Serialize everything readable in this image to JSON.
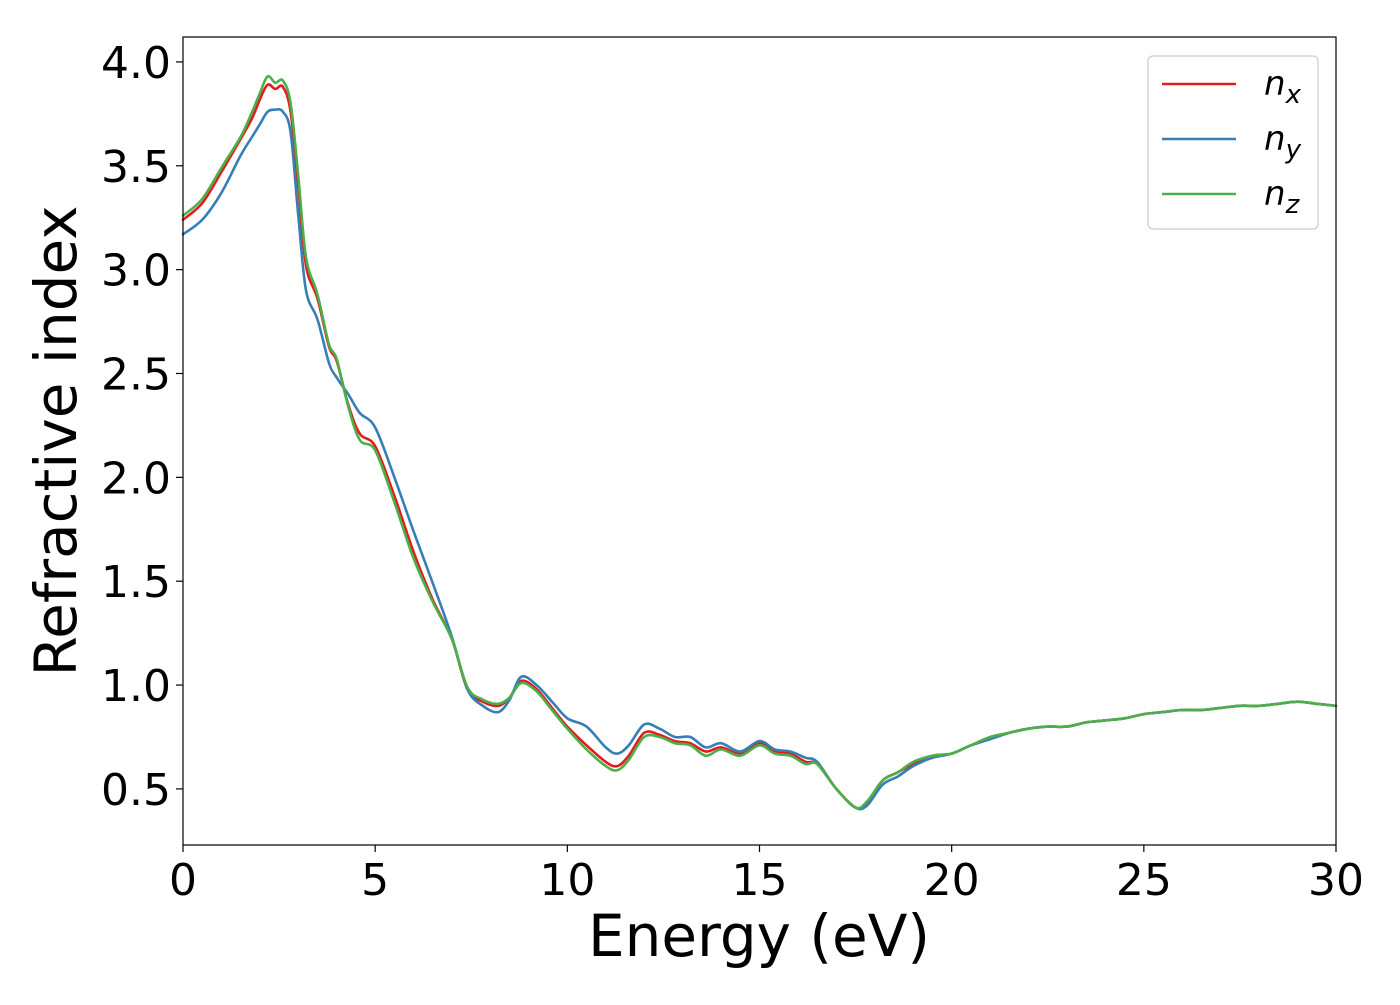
{
  "chart_data": {
    "type": "line",
    "xlabel": "Energy (eV)",
    "ylabel": "Refractive index",
    "xlim": [
      0,
      30
    ],
    "ylim": [
      0.23,
      4.12
    ],
    "xticks": [
      0,
      5,
      10,
      15,
      20,
      25,
      30
    ],
    "xtick_labels": [
      "0",
      "5",
      "10",
      "15",
      "20",
      "25",
      "30"
    ],
    "yticks": [
      0.5,
      1.0,
      1.5,
      2.0,
      2.5,
      3.0,
      3.5,
      4.0
    ],
    "ytick_labels": [
      "0.5",
      "1.0",
      "1.5",
      "2.0",
      "2.5",
      "3.0",
      "3.5",
      "4.0"
    ],
    "grid": false,
    "legend_position": "top-right",
    "series": [
      {
        "name": "n_x",
        "name_base": "n",
        "name_sub": "x",
        "color": "#e41a1c",
        "x": [
          0,
          0.5,
          1.0,
          1.5,
          1.8,
          2.0,
          2.2,
          2.4,
          2.6,
          2.8,
          3.0,
          3.2,
          3.5,
          3.8,
          4.0,
          4.3,
          4.6,
          5.0,
          5.5,
          6.0,
          6.5,
          7.0,
          7.4,
          7.8,
          8.2,
          8.5,
          8.8,
          9.2,
          9.6,
          10.0,
          10.5,
          11.0,
          11.3,
          11.6,
          12.0,
          12.4,
          12.8,
          13.2,
          13.6,
          14.0,
          14.5,
          15.0,
          15.4,
          15.8,
          16.2,
          16.5,
          17.0,
          17.5,
          17.8,
          18.2,
          18.6,
          19.0,
          19.5,
          20.0,
          20.5,
          21.0,
          21.5,
          22.0,
          22.5,
          23.0,
          23.5,
          24.0,
          24.5,
          25.0,
          25.5,
          26.0,
          26.5,
          27.0,
          27.5,
          28.0,
          28.5,
          29.0,
          29.5,
          30.0
        ],
        "y": [
          3.24,
          3.32,
          3.47,
          3.63,
          3.73,
          3.82,
          3.89,
          3.87,
          3.88,
          3.76,
          3.4,
          3.02,
          2.86,
          2.63,
          2.56,
          2.35,
          2.21,
          2.15,
          1.91,
          1.64,
          1.41,
          1.22,
          0.98,
          0.92,
          0.9,
          0.94,
          1.02,
          0.98,
          0.89,
          0.8,
          0.71,
          0.63,
          0.61,
          0.66,
          0.77,
          0.76,
          0.73,
          0.72,
          0.68,
          0.7,
          0.67,
          0.72,
          0.68,
          0.67,
          0.63,
          0.62,
          0.5,
          0.41,
          0.43,
          0.54,
          0.58,
          0.62,
          0.66,
          0.67,
          0.71,
          0.74,
          0.77,
          0.79,
          0.8,
          0.8,
          0.82,
          0.83,
          0.84,
          0.86,
          0.87,
          0.88,
          0.88,
          0.89,
          0.9,
          0.9,
          0.91,
          0.92,
          0.91,
          0.9
        ]
      },
      {
        "name": "n_y",
        "name_base": "n",
        "name_sub": "y",
        "color": "#377eb8",
        "x": [
          0,
          0.5,
          1.0,
          1.5,
          1.8,
          2.0,
          2.2,
          2.4,
          2.6,
          2.8,
          3.0,
          3.2,
          3.5,
          3.8,
          4.0,
          4.3,
          4.6,
          5.0,
          5.5,
          6.0,
          6.5,
          7.0,
          7.4,
          7.8,
          8.2,
          8.5,
          8.8,
          9.2,
          9.6,
          10.0,
          10.5,
          11.0,
          11.3,
          11.6,
          12.0,
          12.4,
          12.8,
          13.2,
          13.6,
          14.0,
          14.5,
          15.0,
          15.4,
          15.8,
          16.2,
          16.5,
          17.0,
          17.5,
          17.8,
          18.2,
          18.6,
          19.0,
          19.5,
          20.0,
          20.5,
          21.0,
          21.5,
          22.0,
          22.5,
          23.0,
          23.5,
          24.0,
          24.5,
          25.0,
          25.5,
          26.0,
          26.5,
          27.0,
          27.5,
          28.0,
          28.5,
          29.0,
          29.5,
          30.0
        ],
        "y": [
          3.17,
          3.24,
          3.37,
          3.55,
          3.64,
          3.7,
          3.76,
          3.77,
          3.76,
          3.66,
          3.26,
          2.9,
          2.76,
          2.55,
          2.48,
          2.4,
          2.31,
          2.24,
          2.0,
          1.74,
          1.49,
          1.23,
          0.98,
          0.9,
          0.87,
          0.93,
          1.04,
          1.0,
          0.92,
          0.84,
          0.8,
          0.7,
          0.67,
          0.71,
          0.81,
          0.79,
          0.75,
          0.75,
          0.7,
          0.72,
          0.68,
          0.73,
          0.69,
          0.68,
          0.65,
          0.63,
          0.5,
          0.41,
          0.42,
          0.52,
          0.56,
          0.61,
          0.65,
          0.67,
          0.71,
          0.74,
          0.77,
          0.79,
          0.8,
          0.8,
          0.82,
          0.83,
          0.84,
          0.86,
          0.87,
          0.88,
          0.88,
          0.89,
          0.9,
          0.9,
          0.91,
          0.92,
          0.91,
          0.9
        ]
      },
      {
        "name": "n_z",
        "name_base": "n",
        "name_sub": "z",
        "color": "#4daf4a",
        "x": [
          0,
          0.5,
          1.0,
          1.5,
          1.8,
          2.0,
          2.2,
          2.4,
          2.6,
          2.8,
          3.0,
          3.2,
          3.5,
          3.8,
          4.0,
          4.3,
          4.6,
          5.0,
          5.5,
          6.0,
          6.5,
          7.0,
          7.4,
          7.8,
          8.2,
          8.5,
          8.8,
          9.2,
          9.6,
          10.0,
          10.5,
          11.0,
          11.3,
          11.6,
          12.0,
          12.4,
          12.8,
          13.2,
          13.6,
          14.0,
          14.5,
          15.0,
          15.4,
          15.8,
          16.2,
          16.5,
          17.0,
          17.5,
          17.8,
          18.2,
          18.6,
          19.0,
          19.5,
          20.0,
          20.5,
          21.0,
          21.5,
          22.0,
          22.5,
          23.0,
          23.5,
          24.0,
          24.5,
          25.0,
          25.5,
          26.0,
          26.5,
          27.0,
          27.5,
          28.0,
          28.5,
          29.0,
          29.5,
          30.0
        ],
        "y": [
          3.26,
          3.34,
          3.49,
          3.64,
          3.76,
          3.85,
          3.93,
          3.9,
          3.91,
          3.8,
          3.45,
          3.06,
          2.88,
          2.64,
          2.57,
          2.34,
          2.18,
          2.13,
          1.88,
          1.61,
          1.4,
          1.22,
          0.99,
          0.93,
          0.91,
          0.94,
          1.01,
          0.97,
          0.88,
          0.79,
          0.69,
          0.61,
          0.59,
          0.64,
          0.75,
          0.75,
          0.72,
          0.71,
          0.66,
          0.69,
          0.66,
          0.71,
          0.67,
          0.66,
          0.62,
          0.62,
          0.5,
          0.41,
          0.44,
          0.54,
          0.58,
          0.63,
          0.66,
          0.67,
          0.71,
          0.75,
          0.77,
          0.79,
          0.8,
          0.8,
          0.82,
          0.83,
          0.84,
          0.86,
          0.87,
          0.88,
          0.88,
          0.89,
          0.9,
          0.9,
          0.91,
          0.92,
          0.91,
          0.9
        ]
      }
    ]
  }
}
